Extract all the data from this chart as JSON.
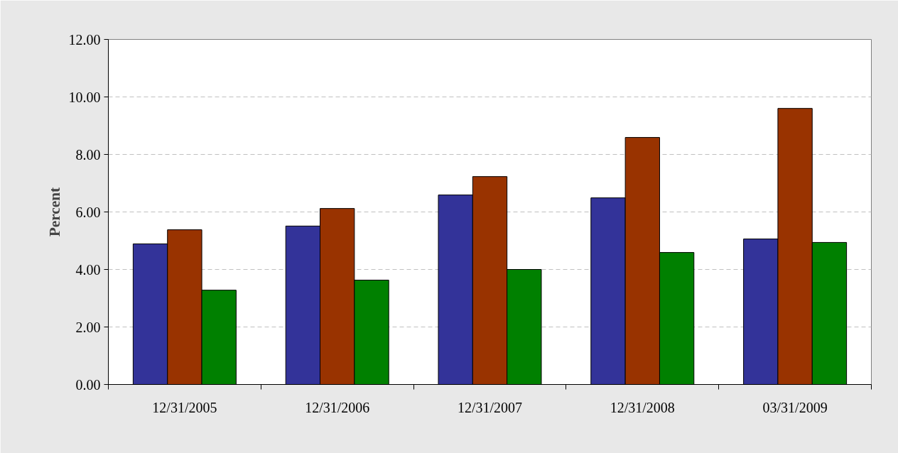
{
  "chart_data": {
    "type": "bar",
    "ylabel": "Percent",
    "categories": [
      "12/31/2005",
      "12/31/2006",
      "12/31/2007",
      "12/31/2008",
      "03/31/2009"
    ],
    "series": [
      {
        "color": "#333399",
        "values": [
          4.89,
          5.51,
          6.59,
          6.49,
          5.06
        ]
      },
      {
        "color": "#993300",
        "values": [
          5.38,
          6.12,
          7.23,
          8.59,
          9.6
        ]
      },
      {
        "color": "#008000",
        "values": [
          3.28,
          3.63,
          4.0,
          4.59,
          4.94
        ]
      }
    ],
    "ylim": [
      0,
      12
    ],
    "yticks": [
      {
        "value": 0,
        "label": "0.00"
      },
      {
        "value": 2,
        "label": "2.00"
      },
      {
        "value": 4,
        "label": "4.00"
      },
      {
        "value": 6,
        "label": "6.00"
      },
      {
        "value": 8,
        "label": "8.00"
      },
      {
        "value": 10,
        "label": "10.00"
      },
      {
        "value": 12,
        "label": "12.00"
      }
    ],
    "grid": "y"
  }
}
